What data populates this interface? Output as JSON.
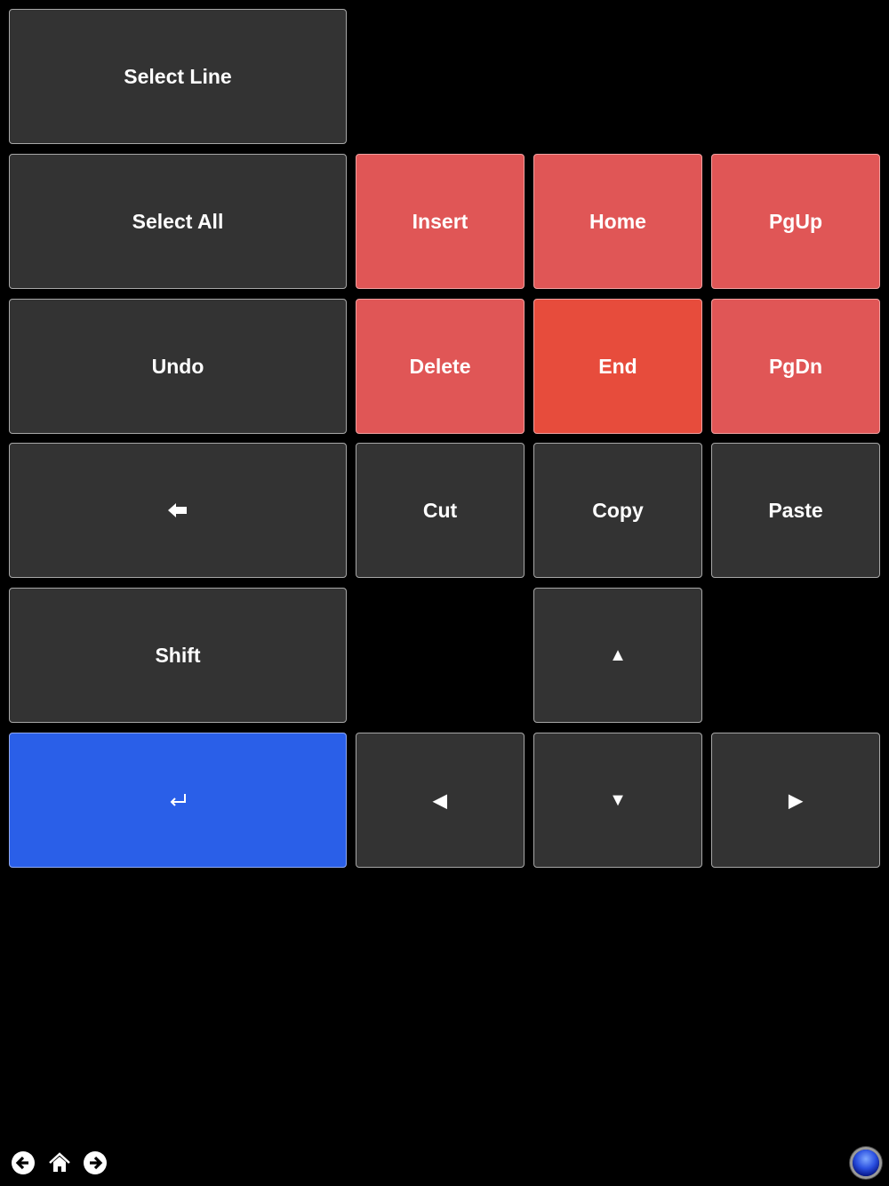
{
  "keys": {
    "select_line": "Select Line",
    "select_all": "Select All",
    "insert": "Insert",
    "home": "Home",
    "pgup": "PgUp",
    "undo": "Undo",
    "delete": "Delete",
    "end": "End",
    "pgdn": "PgDn",
    "backspace": "🡐",
    "cut": "Cut",
    "copy": "Copy",
    "paste": "Paste",
    "shift": "Shift",
    "up": "▲",
    "enter": "↵",
    "left": "◀",
    "down": "▼",
    "right": "▶"
  },
  "colors": {
    "key": "#333333",
    "red": "#e05656",
    "end": "#e74c3c",
    "enter": "#2a5fe8"
  },
  "footer": {
    "icons": [
      "back-icon",
      "home-icon",
      "forward-icon",
      "status-orb-icon"
    ]
  }
}
